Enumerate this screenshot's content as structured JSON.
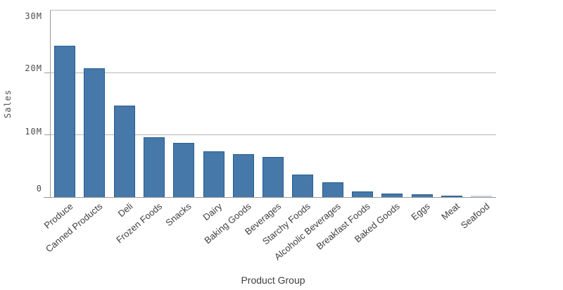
{
  "chart_data": {
    "type": "bar",
    "title": "",
    "xlabel": "Product Group",
    "ylabel": "Sales",
    "categories": [
      "Produce",
      "Canned Products",
      "Deli",
      "Frozen Foods",
      "Snacks",
      "Dairy",
      "Baking Goods",
      "Beverages",
      "Starchy Foods",
      "Alcoholic Beverages",
      "Breakfast Foods",
      "Baked Goods",
      "Eggs",
      "Meat",
      "Seafood"
    ],
    "values": [
      24.2,
      20.6,
      14.7,
      9.6,
      8.7,
      7.3,
      6.9,
      6.4,
      3.6,
      2.4,
      0.9,
      0.55,
      0.4,
      0.25,
      0.1
    ],
    "value_unit": "M",
    "ylim": [
      0,
      30
    ],
    "y_ticks": [
      {
        "label": "30M",
        "value": 30
      },
      {
        "label": "20M",
        "value": 20
      },
      {
        "label": "10M",
        "value": 10
      },
      {
        "label": "0",
        "value": 0
      }
    ],
    "grid": "horizontal-gridlines",
    "legend": "none",
    "colors": {
      "bar_fill": "#4678a9",
      "bar_border": "#255d91",
      "tiny_bar_fill": "#c6d4e0",
      "gridline": "#b6b6b6",
      "axis_line": "#9c9c9c",
      "baseline": "#999999",
      "tick_text": "#4d4d4d",
      "label_text": "#404040"
    }
  }
}
